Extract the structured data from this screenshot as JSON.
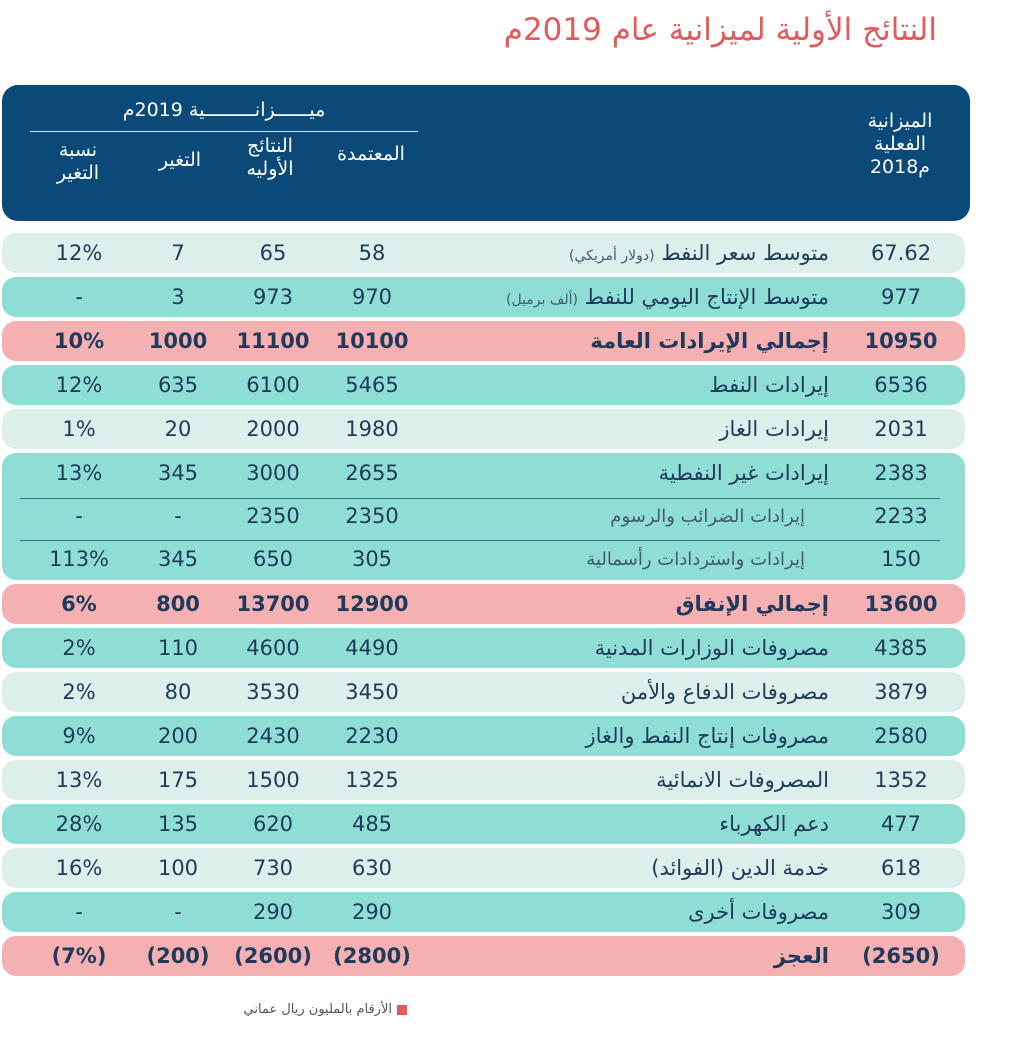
{
  "title": "النتائج الأولية لميزانية عام 2019م",
  "header": {
    "actual_budget": "الميزانية الفعلية 2018م",
    "actual_line1": "الميزانية",
    "actual_line2": "الفعلية",
    "actual_line3": "2018م",
    "group_label": "ميــــــزانـــــــــية 2019م",
    "approved": "المعتمدة",
    "prelim_line1": "النتائج",
    "prelim_line2": "الأوليه",
    "change": "التغير",
    "pct_line1": "نسبة",
    "pct_line2": "التغير"
  },
  "rows": [
    {
      "label": "متوسط سعر النفط",
      "note": "(دولار أمريكي)",
      "actual": "67.62",
      "approved": "58",
      "prelim": "65",
      "change": "7",
      "pct": "12%"
    },
    {
      "label": "متوسط الإنتاج اليومي للنفط",
      "note": "(ألف برميل)",
      "actual": "977",
      "approved": "970",
      "prelim": "973",
      "change": "3",
      "pct": "-"
    },
    {
      "label": "إجمالي الإيرادات العامة",
      "actual": "10950",
      "approved": "10100",
      "prelim": "11100",
      "change": "1000",
      "pct": "10%"
    },
    {
      "label": "إيرادات النفط",
      "actual": "6536",
      "approved": "5465",
      "prelim": "6100",
      "change": "635",
      "pct": "12%"
    },
    {
      "label": "إيرادات الغاز",
      "actual": "2031",
      "approved": "1980",
      "prelim": "2000",
      "change": "20",
      "pct": "1%"
    },
    {
      "label": "إيرادات غير النفطية",
      "actual": "2383",
      "approved": "2655",
      "prelim": "3000",
      "change": "345",
      "pct": "13%"
    },
    {
      "label": "إيرادات الضرائب والرسوم",
      "actual": "2233",
      "approved": "2350",
      "prelim": "2350",
      "change": "-",
      "pct": "-"
    },
    {
      "label": "إيرادات واستردادات رأسمالية",
      "actual": "150",
      "approved": "305",
      "prelim": "650",
      "change": "345",
      "pct": "113%"
    },
    {
      "label": "إجمالي الإنفاق",
      "actual": "13600",
      "approved": "12900",
      "prelim": "13700",
      "change": "800",
      "pct": "6%"
    },
    {
      "label": "مصروفات الوزارات المدنية",
      "actual": "4385",
      "approved": "4490",
      "prelim": "4600",
      "change": "110",
      "pct": "2%"
    },
    {
      "label": "مصروفات الدفاع والأمن",
      "actual": "3879",
      "approved": "3450",
      "prelim": "3530",
      "change": "80",
      "pct": "2%"
    },
    {
      "label": "مصروفات إنتاج النفط والغاز",
      "actual": "2580",
      "approved": "2230",
      "prelim": "2430",
      "change": "200",
      "pct": "9%"
    },
    {
      "label": "المصروفات الانمائية",
      "actual": "1352",
      "approved": "1325",
      "prelim": "1500",
      "change": "175",
      "pct": "13%"
    },
    {
      "label": "دعم الكهرباء",
      "actual": "477",
      "approved": "485",
      "prelim": "620",
      "change": "135",
      "pct": "28%"
    },
    {
      "label": "خدمة الدين (الفوائد)",
      "actual": "618",
      "approved": "630",
      "prelim": "730",
      "change": "100",
      "pct": "16%"
    },
    {
      "label": "مصروفات أخرى",
      "actual": "309",
      "approved": "290",
      "prelim": "290",
      "change": "-",
      "pct": "-"
    },
    {
      "label": "العجز",
      "actual": "(2650)",
      "approved": "(2800)",
      "prelim": "(2600)",
      "change": "(200)",
      "pct": "(7%)"
    }
  ],
  "footnote": "الأرقام بالمليون ريال عماني",
  "colors": {
    "title": "#e25a5a",
    "header_bg": "#0b4a78",
    "pink": "#f5b0b2",
    "teal": "#8fded5",
    "light": "#dcefea"
  }
}
